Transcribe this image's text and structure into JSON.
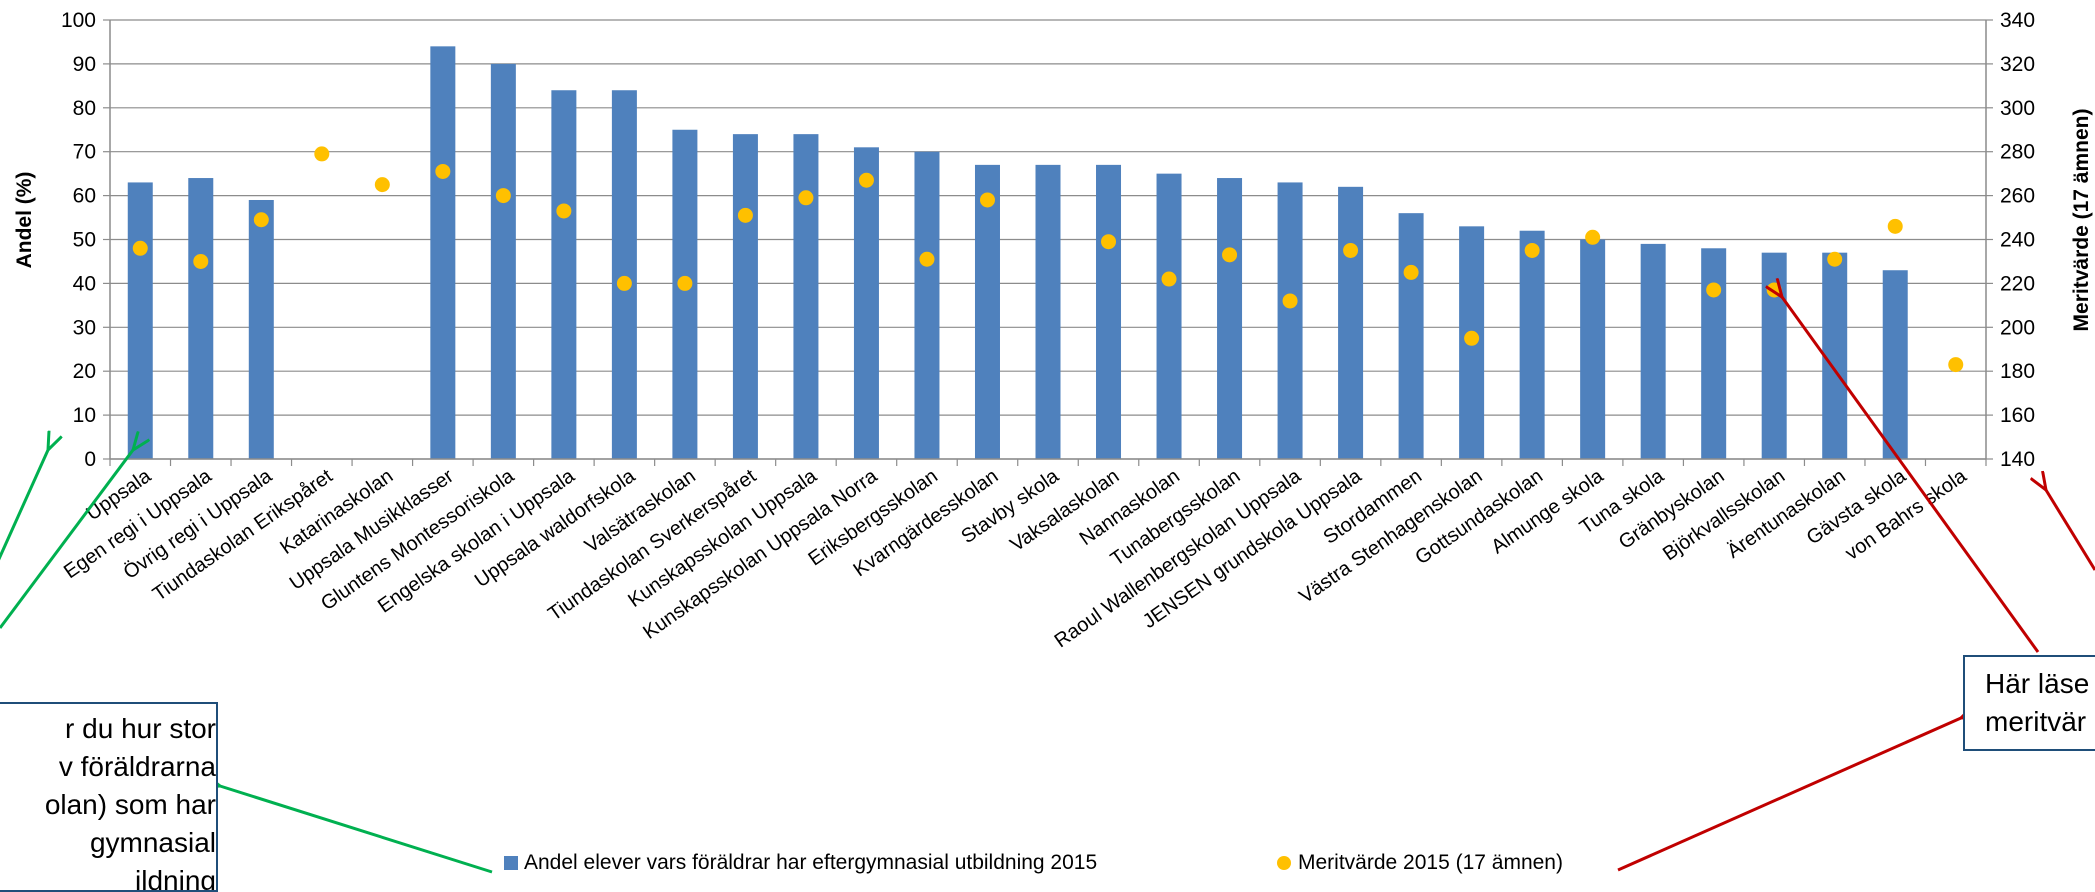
{
  "chart_data": {
    "type": "bar",
    "categories": [
      "Uppsala",
      "Egen regi i Uppsala",
      "Övrig regi i Uppsala",
      "Tiundaskolan Erikspåret",
      "Katarinaskolan",
      "Uppsala Musikklasser",
      "Gluntens Montessoriskola",
      "Engelska skolan i Uppsala",
      "Uppsala waldorfskola",
      "Valsätraskolan",
      "Tiundaskolan Sverkerspåret",
      "Kunskapsskolan Uppsala",
      "Kunskapsskolan Uppsala Norra",
      "Eriksbergsskolan",
      "Kvarngärdesskolan",
      "Stavby skola",
      "Vaksalaskolan",
      "Nannaskolan",
      "Tunabergsskolan",
      "Raoul Wallenbergskolan Uppsala",
      "JENSEN grundskola Uppsala",
      "Stordammen",
      "Västra Stenhagenskolan",
      "Gottsundaskolan",
      "Almunge skola",
      "Tuna skola",
      "Gränbyskolan",
      "Björkvallsskolan",
      "Ärentunaskolan",
      "Gävsta skola",
      "von Bahrs skola"
    ],
    "series": [
      {
        "name": "Andel elever vars föräldrar har eftergymnasial utbildning 2015",
        "axis": "left",
        "kind": "bar",
        "color": "#4f81bd",
        "values": [
          63,
          64,
          59,
          null,
          null,
          94,
          90,
          84,
          84,
          75,
          74,
          74,
          71,
          70,
          67,
          67,
          67,
          65,
          64,
          63,
          62,
          56,
          53,
          52,
          50,
          49,
          48,
          47,
          47,
          43,
          null
        ]
      },
      {
        "name": "Meritvärde 2015 (17 ämnen)",
        "axis": "right",
        "kind": "point",
        "color": "#ffc000",
        "values": [
          236,
          230,
          249,
          279,
          265,
          271,
          260,
          253,
          220,
          220,
          251,
          259,
          267,
          231,
          258,
          null,
          239,
          222,
          233,
          212,
          235,
          225,
          195,
          235,
          241,
          null,
          217,
          217,
          231,
          246,
          183
        ]
      }
    ],
    "ylabel": "Andel (%)",
    "ylim": [
      0,
      100
    ],
    "yticks": [
      0,
      10,
      20,
      30,
      40,
      50,
      60,
      70,
      80,
      90,
      100
    ],
    "y2label": "Meritvärde (17 ämnen)",
    "y2lim": [
      140,
      340
    ],
    "y2ticks": [
      140,
      160,
      180,
      200,
      220,
      240,
      260,
      280,
      300,
      320,
      340
    ],
    "grid": true,
    "legend": "bottom"
  },
  "colors": {
    "bars": "#4f81bd",
    "points": "#ffc000",
    "green_arrow": "#00b050",
    "red_arrow": "#c00000",
    "callout_border": "#1f4e79"
  },
  "callouts": {
    "left": "r du hur stor\nv föräldrarna\nolan) som har\ngymnasial\nildning",
    "right": "Här läse\nmeritvär"
  }
}
